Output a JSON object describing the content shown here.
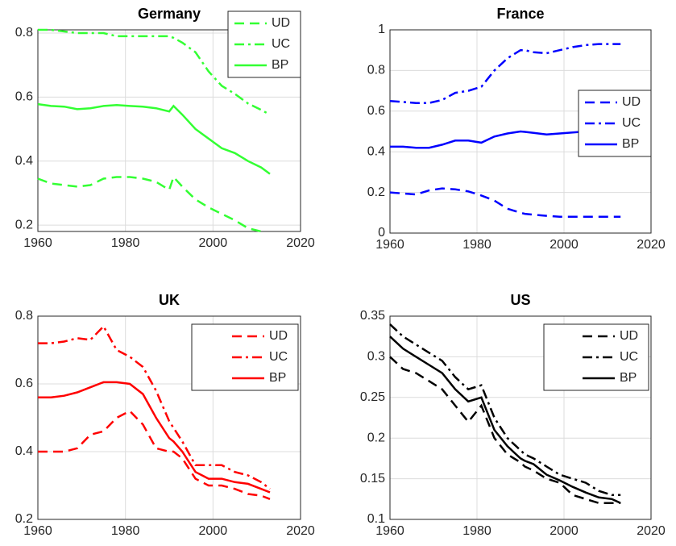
{
  "chart_data": [
    {
      "type": "line",
      "title": "Germany",
      "xlim": [
        1960,
        2020
      ],
      "xticks": [
        1960,
        1980,
        2000,
        2020
      ],
      "ylim": [
        0.18,
        0.81
      ],
      "yticks": [
        0.2,
        0.4,
        0.6,
        0.8
      ],
      "grid": true,
      "legend_loc": "northeast",
      "x": [
        1960,
        1963,
        1966,
        1969,
        1972,
        1975,
        1978,
        1981,
        1984,
        1987,
        1990,
        1991,
        1993,
        1996,
        1999,
        2002,
        2005,
        2008,
        2011,
        2013
      ],
      "series": [
        {
          "name": "UD",
          "color": "#33ff33",
          "line_style": "dashed",
          "values": [
            0.345,
            0.33,
            0.325,
            0.32,
            0.325,
            0.345,
            0.35,
            0.35,
            0.345,
            0.335,
            0.31,
            0.35,
            0.32,
            0.28,
            0.255,
            0.235,
            0.215,
            0.19,
            0.18,
            null
          ]
        },
        {
          "name": "UC",
          "color": "#33ff33",
          "line_style": "dashdot",
          "values": [
            0.81,
            0.81,
            0.805,
            0.8,
            0.8,
            0.8,
            0.79,
            0.79,
            0.79,
            0.79,
            0.79,
            0.785,
            0.77,
            0.74,
            0.68,
            0.635,
            0.61,
            0.58,
            0.56,
            0.545
          ]
        },
        {
          "name": "BP",
          "color": "#33ff33",
          "line_style": "solid",
          "values": [
            0.578,
            0.572,
            0.57,
            0.562,
            0.565,
            0.572,
            0.575,
            0.572,
            0.57,
            0.565,
            0.555,
            0.572,
            0.545,
            0.5,
            0.47,
            0.44,
            0.425,
            0.4,
            0.38,
            0.36
          ]
        }
      ]
    },
    {
      "type": "line",
      "title": "France",
      "xlim": [
        1960,
        2020
      ],
      "xticks": [
        1960,
        1980,
        2000,
        2020
      ],
      "ylim": [
        0,
        1
      ],
      "yticks": [
        0,
        0.2,
        0.4,
        0.6,
        0.8,
        1
      ],
      "grid": true,
      "legend_loc": "east",
      "x": [
        1960,
        1963,
        1966,
        1969,
        1972,
        1975,
        1978,
        1981,
        1984,
        1987,
        1990,
        1991,
        1993,
        1996,
        1999,
        2002,
        2005,
        2008,
        2011,
        2013
      ],
      "series": [
        {
          "name": "UD",
          "color": "#0000ff",
          "line_style": "dashed",
          "values": [
            0.2,
            0.195,
            0.19,
            0.21,
            0.22,
            0.215,
            0.205,
            0.185,
            0.16,
            0.12,
            0.1,
            0.095,
            0.09,
            0.085,
            0.08,
            0.08,
            0.08,
            0.08,
            0.08,
            0.08
          ]
        },
        {
          "name": "UC",
          "color": "#0000ff",
          "line_style": "dashdot",
          "values": [
            0.65,
            0.645,
            0.64,
            0.64,
            0.655,
            0.69,
            0.7,
            0.72,
            0.8,
            0.86,
            0.9,
            0.9,
            0.89,
            0.885,
            0.9,
            0.915,
            0.925,
            0.93,
            0.93,
            0.93
          ]
        },
        {
          "name": "BP",
          "color": "#0000ff",
          "line_style": "solid",
          "values": [
            0.425,
            0.425,
            0.42,
            0.42,
            0.435,
            0.455,
            0.455,
            0.445,
            0.475,
            0.49,
            0.5,
            0.498,
            0.493,
            0.485,
            0.49,
            0.495,
            0.5,
            0.502,
            0.505,
            0.505
          ]
        }
      ]
    },
    {
      "type": "line",
      "title": "UK",
      "xlim": [
        1960,
        2020
      ],
      "xticks": [
        1960,
        1980,
        2000,
        2020
      ],
      "ylim": [
        0.2,
        0.8
      ],
      "yticks": [
        0.2,
        0.4,
        0.6,
        0.8
      ],
      "grid": true,
      "legend_loc": "northeast",
      "x": [
        1960,
        1963,
        1966,
        1969,
        1972,
        1975,
        1978,
        1981,
        1984,
        1987,
        1990,
        1991,
        1993,
        1996,
        1999,
        2002,
        2005,
        2008,
        2011,
        2013
      ],
      "series": [
        {
          "name": "UD",
          "color": "#ff0000",
          "line_style": "dashed",
          "values": [
            0.4,
            0.4,
            0.4,
            0.41,
            0.45,
            0.46,
            0.5,
            0.52,
            0.48,
            0.41,
            0.4,
            0.4,
            0.38,
            0.32,
            0.3,
            0.3,
            0.29,
            0.275,
            0.27,
            0.26
          ]
        },
        {
          "name": "UC",
          "color": "#ff0000",
          "line_style": "dashdot",
          "values": [
            0.72,
            0.72,
            0.725,
            0.735,
            0.73,
            0.77,
            0.7,
            0.68,
            0.65,
            0.58,
            0.49,
            0.47,
            0.43,
            0.36,
            0.36,
            0.36,
            0.34,
            0.33,
            0.31,
            0.29
          ]
        },
        {
          "name": "BP",
          "color": "#ff0000",
          "line_style": "solid",
          "values": [
            0.56,
            0.56,
            0.565,
            0.575,
            0.59,
            0.605,
            0.605,
            0.6,
            0.57,
            0.5,
            0.44,
            0.43,
            0.4,
            0.34,
            0.32,
            0.32,
            0.31,
            0.305,
            0.29,
            0.28
          ]
        }
      ]
    },
    {
      "type": "line",
      "title": "US",
      "xlim": [
        1960,
        2020
      ],
      "xticks": [
        1960,
        1980,
        2000,
        2020
      ],
      "ylim": [
        0.1,
        0.35
      ],
      "yticks": [
        0.1,
        0.15,
        0.2,
        0.25,
        0.3,
        0.35
      ],
      "grid": true,
      "legend_loc": "northeast",
      "x": [
        1960,
        1963,
        1966,
        1969,
        1972,
        1975,
        1978,
        1981,
        1984,
        1987,
        1990,
        1991,
        1993,
        1996,
        1999,
        2002,
        2005,
        2008,
        2011,
        2013
      ],
      "series": [
        {
          "name": "UD",
          "color": "#000000",
          "line_style": "dashed",
          "values": [
            0.3,
            0.285,
            0.28,
            0.27,
            0.26,
            0.24,
            0.22,
            0.24,
            0.2,
            0.18,
            0.17,
            0.165,
            0.16,
            0.15,
            0.145,
            0.13,
            0.125,
            0.12,
            0.12,
            0.12
          ]
        },
        {
          "name": "UC",
          "color": "#000000",
          "line_style": "dashdot",
          "values": [
            0.34,
            0.325,
            0.315,
            0.305,
            0.295,
            0.275,
            0.26,
            0.265,
            0.225,
            0.2,
            0.185,
            0.18,
            0.175,
            0.165,
            0.155,
            0.15,
            0.145,
            0.135,
            0.13,
            0.13
          ]
        },
        {
          "name": "BP",
          "color": "#000000",
          "line_style": "solid",
          "values": [
            0.325,
            0.31,
            0.3,
            0.29,
            0.28,
            0.26,
            0.245,
            0.25,
            0.21,
            0.19,
            0.175,
            0.172,
            0.168,
            0.155,
            0.148,
            0.14,
            0.133,
            0.127,
            0.125,
            0.12
          ]
        }
      ]
    }
  ]
}
